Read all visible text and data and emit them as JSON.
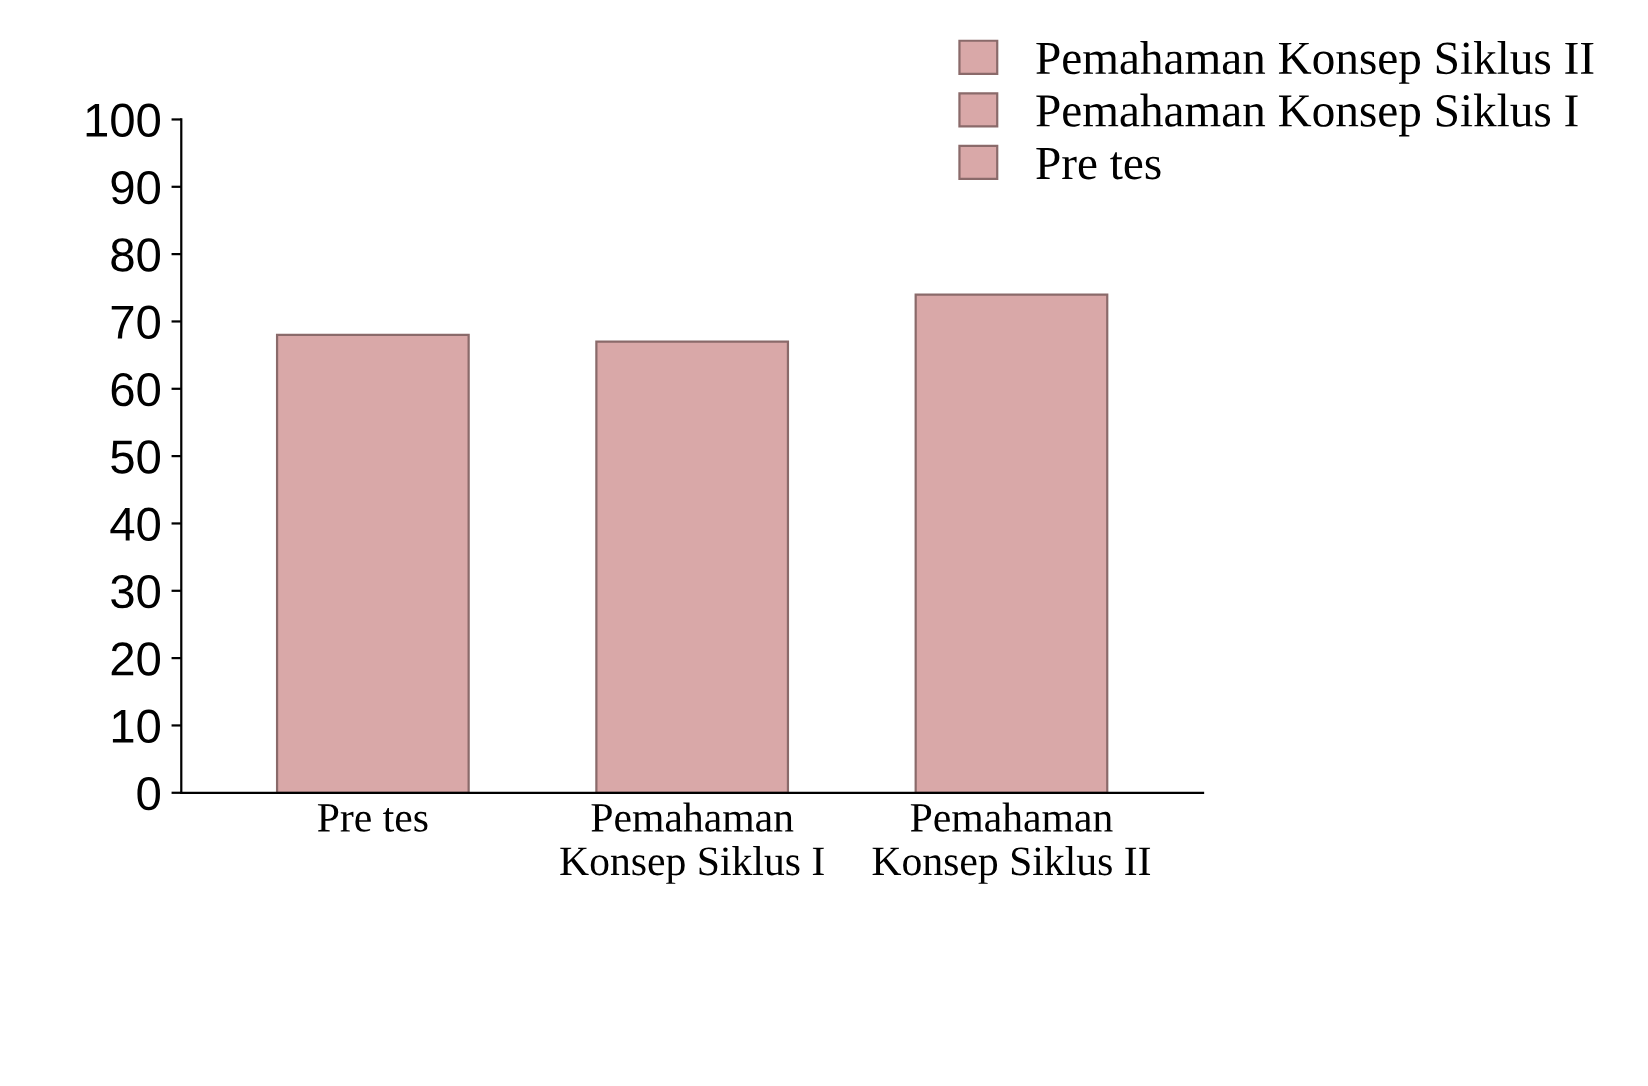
{
  "chart_data": {
    "type": "bar",
    "categories": [
      "Pre tes",
      "Pemahaman Konsep Siklus I",
      "Pemahaman Konsep Siklus II"
    ],
    "series": [
      {
        "name": "Pemahaman Konsep Siklus II",
        "color": "#d9a8a8",
        "values": [
          null,
          null,
          74
        ]
      },
      {
        "name": "Pemahaman Konsep Siklus I",
        "color": "#d9a8a8",
        "values": [
          null,
          67,
          null
        ]
      },
      {
        "name": "Pre tes",
        "color": "#d9a8a8",
        "values": [
          68,
          null,
          null
        ]
      }
    ],
    "ylim": [
      0,
      100
    ],
    "yticks": [
      0,
      10,
      20,
      30,
      40,
      50,
      60,
      70,
      80,
      90,
      100
    ],
    "grid": false,
    "legend": "top right"
  }
}
